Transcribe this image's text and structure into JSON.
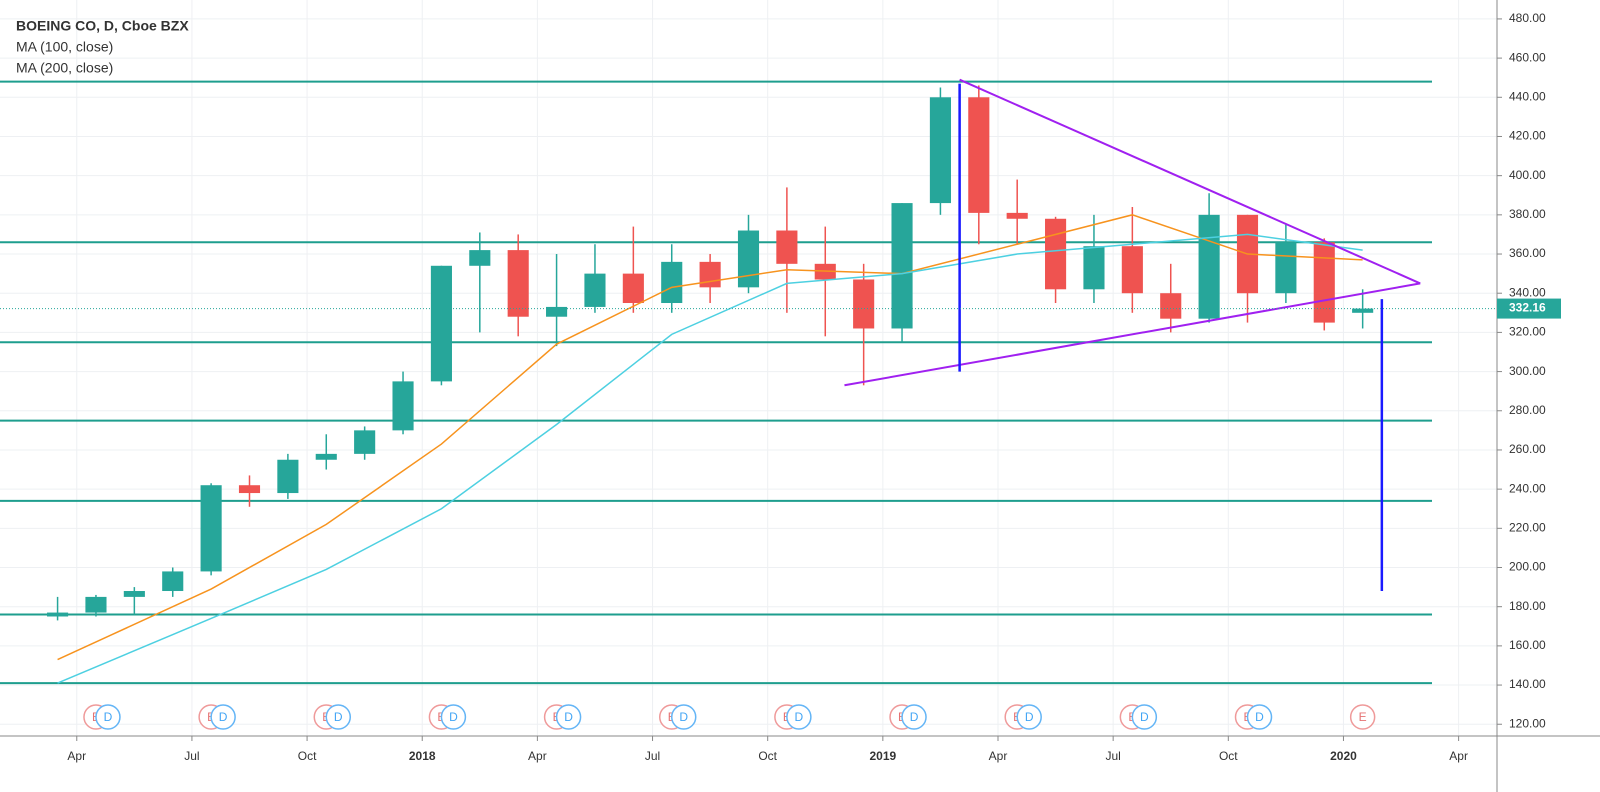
{
  "chart_data": {
    "type": "candlestick",
    "title": "BOEING CO, D, Cboe BZX",
    "legend": [
      "MA (100, close)",
      "MA (200, close)"
    ],
    "last_price": {
      "value": 332.16,
      "label": "332.16"
    },
    "x": [
      "2017-03",
      "2017-04",
      "2017-05",
      "2017-06",
      "2017-07",
      "2017-08",
      "2017-09",
      "2017-10",
      "2017-11",
      "2017-12",
      "2018-01",
      "2018-02",
      "2018-03",
      "2018-04",
      "2018-05",
      "2018-06",
      "2018-07",
      "2018-08",
      "2018-09",
      "2018-10",
      "2018-11",
      "2018-12",
      "2019-01",
      "2019-02",
      "2019-03",
      "2019-04",
      "2019-05",
      "2019-06",
      "2019-07",
      "2019-08",
      "2019-09",
      "2019-10",
      "2019-11",
      "2019-12",
      "2020-01"
    ],
    "open": [
      175,
      177,
      185,
      188,
      198,
      242,
      238,
      255,
      258,
      270,
      295,
      354,
      362,
      328,
      333,
      350,
      335,
      356,
      343,
      372,
      355,
      347,
      322,
      386,
      440,
      381,
      378,
      342,
      364,
      340,
      327,
      380,
      340,
      366,
      330
    ],
    "high": [
      185,
      186,
      190,
      200,
      243,
      247,
      258,
      268,
      272,
      300,
      354,
      371,
      370,
      360,
      365,
      374,
      365,
      360,
      380,
      394,
      374,
      355,
      386,
      445,
      446,
      398,
      379,
      380,
      384,
      355,
      391,
      380,
      375,
      368,
      342
    ],
    "low": [
      173,
      175,
      176,
      185,
      196,
      231,
      235,
      250,
      255,
      268,
      293,
      320,
      318,
      313,
      330,
      330,
      330,
      335,
      340,
      330,
      318,
      293,
      315,
      380,
      365,
      365,
      335,
      335,
      330,
      320,
      325,
      325,
      335,
      321,
      322
    ],
    "close": [
      177,
      185,
      188,
      198,
      242,
      238,
      255,
      258,
      270,
      295,
      354,
      362,
      328,
      333,
      350,
      335,
      356,
      343,
      372,
      355,
      347,
      322,
      386,
      440,
      381,
      378,
      342,
      364,
      340,
      327,
      380,
      340,
      366,
      325,
      332.16
    ],
    "up_color": "#26a69a",
    "down_color": "#ef5350",
    "series": [
      {
        "name": "MA (100, close)",
        "color": "#f7931e",
        "x": [
          "2017-03",
          "2017-07",
          "2017-10",
          "2018-01",
          "2018-04",
          "2018-07",
          "2018-10",
          "2019-01",
          "2019-04",
          "2019-07",
          "2019-10",
          "2020-01"
        ],
        "values": [
          153,
          189,
          222,
          263,
          314,
          343,
          352,
          350,
          365,
          380,
          360,
          357
        ]
      },
      {
        "name": "MA (200, close)",
        "color": "#4dd0e1",
        "x": [
          "2017-03",
          "2017-07",
          "2017-10",
          "2018-01",
          "2018-04",
          "2018-07",
          "2018-10",
          "2019-01",
          "2019-04",
          "2019-07",
          "2019-10",
          "2020-01"
        ],
        "values": [
          141,
          174,
          199,
          230,
          273,
          319,
          345,
          350,
          360,
          365,
          370,
          362
        ]
      }
    ],
    "levels": {
      "color": "#1e9e8e",
      "values": [
        448,
        366,
        315,
        275,
        234,
        176,
        141
      ]
    },
    "trend_lines": {
      "color": "#a020f0",
      "lines": [
        {
          "x": [
            "2019-03",
            "2020-03"
          ],
          "values": [
            449,
            345
          ]
        },
        {
          "x": [
            "2018-12",
            "2020-03"
          ],
          "values": [
            293,
            345
          ]
        }
      ]
    },
    "measure_lines": {
      "color": "#1a1aff",
      "lines": [
        {
          "x": "2019-03",
          "values": [
            300,
            447
          ]
        },
        {
          "x": "2020-02",
          "values": [
            337,
            188
          ]
        }
      ]
    },
    "events": [
      {
        "x": "2017-04",
        "labels": [
          "E",
          "D"
        ]
      },
      {
        "x": "2017-07",
        "labels": [
          "E",
          "D"
        ]
      },
      {
        "x": "2017-10",
        "labels": [
          "E",
          "D"
        ]
      },
      {
        "x": "2018-01",
        "labels": [
          "E",
          "D"
        ]
      },
      {
        "x": "2018-04",
        "labels": [
          "E",
          "D"
        ]
      },
      {
        "x": "2018-07",
        "labels": [
          "E",
          "D"
        ]
      },
      {
        "x": "2018-10",
        "labels": [
          "E",
          "D"
        ]
      },
      {
        "x": "2019-01",
        "labels": [
          "E",
          "D"
        ]
      },
      {
        "x": "2019-04",
        "labels": [
          "E",
          "D"
        ]
      },
      {
        "x": "2019-07",
        "labels": [
          "E",
          "D"
        ]
      },
      {
        "x": "2019-10",
        "labels": [
          "E",
          "D"
        ]
      },
      {
        "x": "2020-01",
        "labels": [
          "E"
        ]
      }
    ],
    "xlim": [
      "2017-02",
      "2020-05"
    ],
    "xticks": [
      {
        "value": "2017-04",
        "label": "Apr"
      },
      {
        "value": "2017-07",
        "label": "Jul"
      },
      {
        "value": "2017-10",
        "label": "Oct"
      },
      {
        "value": "2018-01",
        "label": "2018"
      },
      {
        "value": "2018-04",
        "label": "Apr"
      },
      {
        "value": "2018-07",
        "label": "Jul"
      },
      {
        "value": "2018-10",
        "label": "Oct"
      },
      {
        "value": "2019-01",
        "label": "2019"
      },
      {
        "value": "2019-04",
        "label": "Apr"
      },
      {
        "value": "2019-07",
        "label": "Jul"
      },
      {
        "value": "2019-10",
        "label": "Oct"
      },
      {
        "value": "2020-01",
        "label": "2020"
      },
      {
        "value": "2020-04",
        "label": "Apr"
      }
    ],
    "ylim": [
      114,
      482
    ],
    "yticks": [
      {
        "value": 120,
        "label": "120.00"
      },
      {
        "value": 140,
        "label": "140.00"
      },
      {
        "value": 160,
        "label": "160.00"
      },
      {
        "value": 180,
        "label": "180.00"
      },
      {
        "value": 200,
        "label": "200.00"
      },
      {
        "value": 220,
        "label": "220.00"
      },
      {
        "value": 240,
        "label": "240.00"
      },
      {
        "value": 260,
        "label": "260.00"
      },
      {
        "value": 280,
        "label": "280.00"
      },
      {
        "value": 300,
        "label": "300.00"
      },
      {
        "value": 320,
        "label": "320.00"
      },
      {
        "value": 340,
        "label": "340.00"
      },
      {
        "value": 360,
        "label": "360.00"
      },
      {
        "value": 380,
        "label": "380.00"
      },
      {
        "value": 400,
        "label": "400.00"
      },
      {
        "value": 420,
        "label": "420.00"
      },
      {
        "value": 440,
        "label": "440.00"
      },
      {
        "value": 460,
        "label": "460.00"
      },
      {
        "value": 480,
        "label": "480.00"
      }
    ],
    "grid": true
  }
}
